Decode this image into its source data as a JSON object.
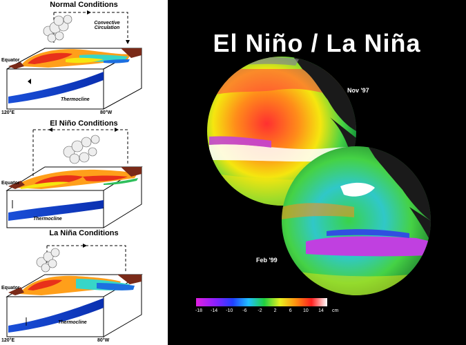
{
  "left": {
    "panels": [
      {
        "title": "Normal Conditions",
        "labels": {
          "equator": "Equator",
          "thermocline": "Thermocline",
          "convective": "Convective Circulation",
          "lon_left": "120°E",
          "lon_right": "80°W"
        }
      },
      {
        "title": "El Niño Conditions",
        "labels": {
          "equator": "Equator",
          "thermocline": "Thermocline"
        }
      },
      {
        "title": "La Niña Conditions",
        "labels": {
          "equator": "Equator",
          "thermocline": "Thermocline",
          "lon_left": "120°E",
          "lon_right": "80°W"
        }
      }
    ]
  },
  "right": {
    "title": "El Niño / La Niña",
    "globe1_label": "Nov '97",
    "globe2_label": "Feb '99",
    "scale": {
      "ticks": [
        "-18",
        "-14",
        "-10",
        "-6",
        "-2",
        "2",
        "6",
        "10",
        "14"
      ],
      "unit": "cm"
    }
  }
}
